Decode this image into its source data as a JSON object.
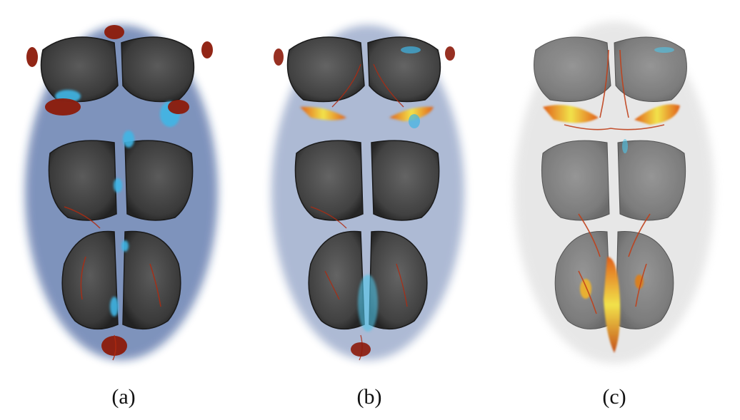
{
  "figure": {
    "panels": [
      {
        "id": "a",
        "caption": "(a)",
        "style": "blue-dominant"
      },
      {
        "id": "b",
        "caption": "(b)",
        "style": "mixed"
      },
      {
        "id": "c",
        "caption": "(c)",
        "style": "hot-highlights"
      }
    ]
  },
  "colors": {
    "background": "#ffffff",
    "tissue": "#4a4a4a",
    "deep_blue": "#0d2a6e",
    "cyan": "#3fb6e6",
    "dark_red": "#8c1a0a",
    "orange": "#e0601a",
    "yellow": "#f2e24a"
  }
}
